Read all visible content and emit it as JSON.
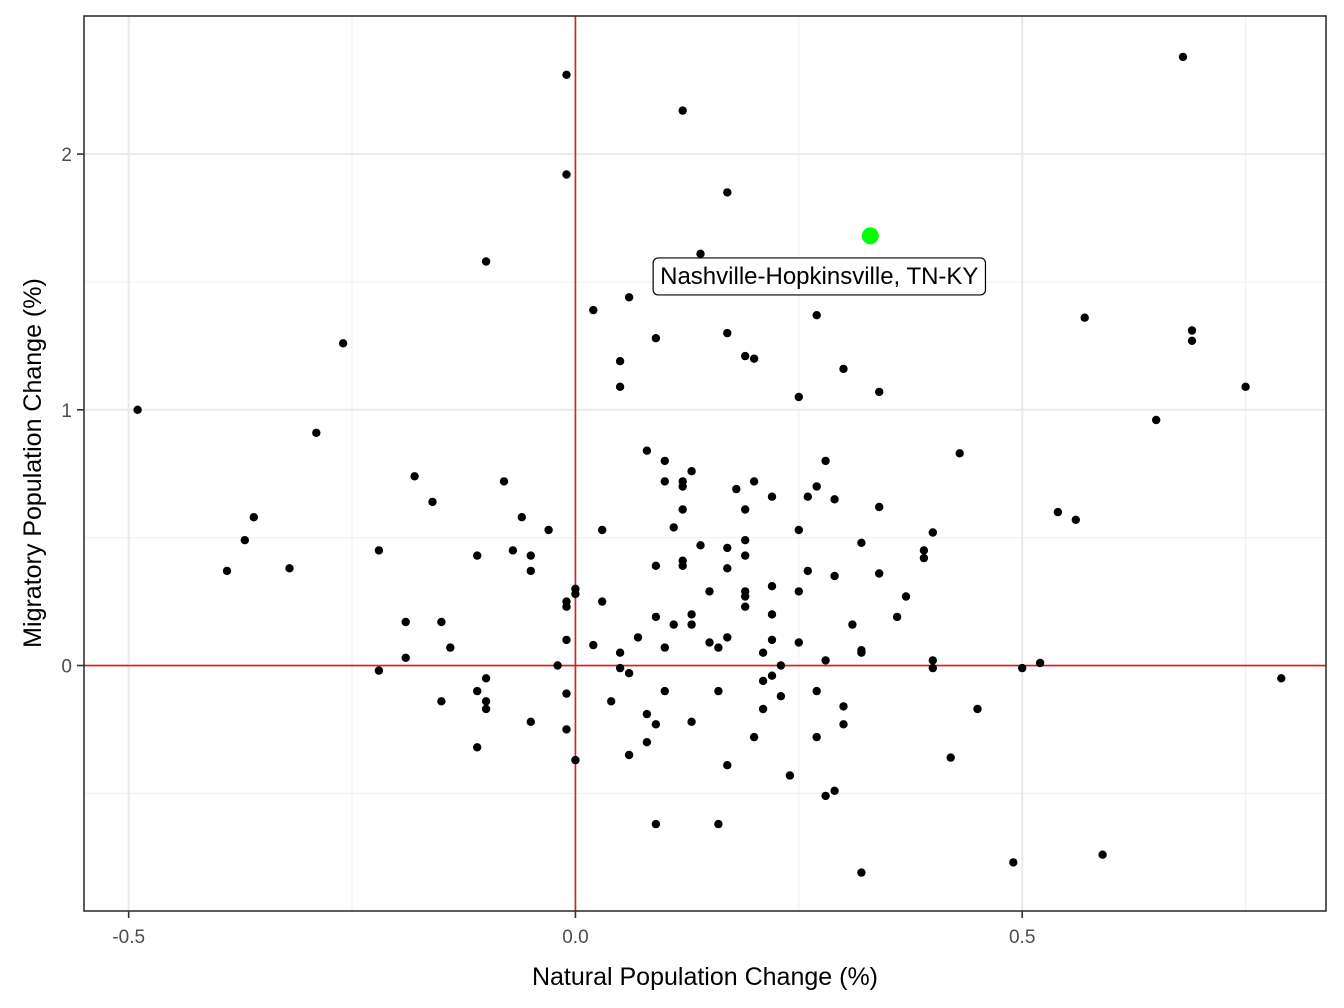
{
  "chart_data": {
    "type": "scatter",
    "xlabel": "Natural Population Change (%)",
    "ylabel": "Migratory Population Change (%)",
    "xlim": [
      -0.55,
      0.84
    ],
    "ylim": [
      -0.96,
      2.54
    ],
    "x_ticks": [
      -0.5,
      0.0,
      0.5
    ],
    "x_tick_labels": [
      "-0.5",
      "0.0",
      "0.5"
    ],
    "y_ticks": [
      0,
      1,
      2
    ],
    "y_tick_labels": [
      "0",
      "1",
      "2"
    ],
    "x_minor_ticks": [
      -0.25,
      0.25,
      0.75
    ],
    "y_minor_ticks": [
      -0.5,
      0.5,
      1.5
    ],
    "grid": true,
    "reference_lines": {
      "x": 0,
      "y": 0,
      "color": "#e41a1c"
    },
    "highlight": {
      "label": "Nashville-Hopkinsville, TN-KY",
      "x": 0.33,
      "y": 1.68,
      "color": "#00ff00"
    },
    "point_color": "#000000",
    "points": [
      [
        0.68,
        2.38
      ],
      [
        -0.01,
        2.31
      ],
      [
        0.12,
        2.17
      ],
      [
        -0.01,
        1.92
      ],
      [
        0.17,
        1.85
      ],
      [
        0.14,
        1.61
      ],
      [
        -0.1,
        1.58
      ],
      [
        0.06,
        1.44
      ],
      [
        0.02,
        1.39
      ],
      [
        0.27,
        1.37
      ],
      [
        0.57,
        1.36
      ],
      [
        0.69,
        1.31
      ],
      [
        0.69,
        1.27
      ],
      [
        -0.26,
        1.26
      ],
      [
        0.09,
        1.28
      ],
      [
        0.17,
        1.3
      ],
      [
        0.19,
        1.21
      ],
      [
        0.2,
        1.2
      ],
      [
        0.05,
        1.19
      ],
      [
        0.3,
        1.16
      ],
      [
        0.05,
        1.09
      ],
      [
        0.34,
        1.07
      ],
      [
        0.75,
        1.09
      ],
      [
        0.25,
        1.05
      ],
      [
        -0.49,
        1.0
      ],
      [
        0.65,
        0.96
      ],
      [
        -0.29,
        0.91
      ],
      [
        0.08,
        0.84
      ],
      [
        0.43,
        0.83
      ],
      [
        0.1,
        0.8
      ],
      [
        0.28,
        0.8
      ],
      [
        0.13,
        0.76
      ],
      [
        -0.18,
        0.74
      ],
      [
        0.12,
        0.72
      ],
      [
        0.1,
        0.72
      ],
      [
        0.12,
        0.7
      ],
      [
        -0.08,
        0.72
      ],
      [
        0.2,
        0.72
      ],
      [
        0.18,
        0.69
      ],
      [
        0.27,
        0.7
      ],
      [
        0.22,
        0.66
      ],
      [
        0.26,
        0.66
      ],
      [
        0.29,
        0.65
      ],
      [
        -0.16,
        0.64
      ],
      [
        0.34,
        0.62
      ],
      [
        0.12,
        0.61
      ],
      [
        0.19,
        0.61
      ],
      [
        0.54,
        0.6
      ],
      [
        -0.36,
        0.58
      ],
      [
        -0.06,
        0.58
      ],
      [
        0.56,
        0.57
      ],
      [
        0.11,
        0.54
      ],
      [
        0.03,
        0.53
      ],
      [
        -0.03,
        0.53
      ],
      [
        0.25,
        0.53
      ],
      [
        0.4,
        0.52
      ],
      [
        -0.37,
        0.49
      ],
      [
        0.19,
        0.49
      ],
      [
        0.32,
        0.48
      ],
      [
        0.14,
        0.47
      ],
      [
        0.17,
        0.46
      ],
      [
        -0.22,
        0.45
      ],
      [
        -0.07,
        0.45
      ],
      [
        0.39,
        0.45
      ],
      [
        -0.11,
        0.43
      ],
      [
        -0.05,
        0.43
      ],
      [
        0.19,
        0.43
      ],
      [
        0.39,
        0.42
      ],
      [
        0.12,
        0.41
      ],
      [
        -0.39,
        0.37
      ],
      [
        -0.32,
        0.38
      ],
      [
        0.09,
        0.39
      ],
      [
        0.12,
        0.39
      ],
      [
        0.17,
        0.38
      ],
      [
        0.26,
        0.37
      ],
      [
        -0.05,
        0.37
      ],
      [
        0.34,
        0.36
      ],
      [
        0.29,
        0.35
      ],
      [
        0.22,
        0.31
      ],
      [
        0.0,
        0.3
      ],
      [
        0.15,
        0.29
      ],
      [
        0.19,
        0.29
      ],
      [
        0.25,
        0.29
      ],
      [
        0.0,
        0.28
      ],
      [
        0.19,
        0.27
      ],
      [
        0.37,
        0.27
      ],
      [
        -0.01,
        0.25
      ],
      [
        0.03,
        0.25
      ],
      [
        -0.01,
        0.23
      ],
      [
        0.19,
        0.23
      ],
      [
        0.13,
        0.2
      ],
      [
        0.22,
        0.2
      ],
      [
        0.09,
        0.19
      ],
      [
        0.36,
        0.19
      ],
      [
        -0.19,
        0.17
      ],
      [
        -0.15,
        0.17
      ],
      [
        0.11,
        0.16
      ],
      [
        0.13,
        0.16
      ],
      [
        0.31,
        0.16
      ],
      [
        0.07,
        0.11
      ],
      [
        0.17,
        0.11
      ],
      [
        -0.01,
        0.1
      ],
      [
        0.22,
        0.1
      ],
      [
        0.15,
        0.09
      ],
      [
        0.25,
        0.09
      ],
      [
        0.02,
        0.08
      ],
      [
        -0.14,
        0.07
      ],
      [
        0.1,
        0.07
      ],
      [
        0.16,
        0.07
      ],
      [
        0.32,
        0.06
      ],
      [
        0.05,
        0.05
      ],
      [
        0.21,
        0.05
      ],
      [
        0.32,
        0.05
      ],
      [
        -0.19,
        0.03
      ],
      [
        0.28,
        0.02
      ],
      [
        0.4,
        0.02
      ],
      [
        0.52,
        0.01
      ],
      [
        -0.02,
        0.0
      ],
      [
        0.23,
        0.0
      ],
      [
        0.05,
        -0.01
      ],
      [
        0.4,
        -0.01
      ],
      [
        -0.22,
        -0.02
      ],
      [
        0.06,
        -0.03
      ],
      [
        0.22,
        -0.04
      ],
      [
        0.5,
        -0.01
      ],
      [
        -0.1,
        -0.05
      ],
      [
        0.79,
        -0.05
      ],
      [
        0.21,
        -0.06
      ],
      [
        -0.11,
        -0.1
      ],
      [
        -0.01,
        -0.11
      ],
      [
        0.1,
        -0.1
      ],
      [
        0.16,
        -0.1
      ],
      [
        0.27,
        -0.1
      ],
      [
        0.23,
        -0.12
      ],
      [
        -0.15,
        -0.14
      ],
      [
        -0.1,
        -0.14
      ],
      [
        0.04,
        -0.14
      ],
      [
        -0.1,
        -0.17
      ],
      [
        0.3,
        -0.16
      ],
      [
        0.21,
        -0.17
      ],
      [
        0.45,
        -0.17
      ],
      [
        0.08,
        -0.19
      ],
      [
        0.09,
        -0.23
      ],
      [
        -0.05,
        -0.22
      ],
      [
        0.13,
        -0.22
      ],
      [
        0.3,
        -0.23
      ],
      [
        -0.01,
        -0.25
      ],
      [
        0.2,
        -0.28
      ],
      [
        0.27,
        -0.28
      ],
      [
        0.08,
        -0.3
      ],
      [
        -0.11,
        -0.32
      ],
      [
        0.06,
        -0.35
      ],
      [
        0.42,
        -0.36
      ],
      [
        0.0,
        -0.37
      ],
      [
        0.17,
        -0.39
      ],
      [
        0.24,
        -0.43
      ],
      [
        0.29,
        -0.49
      ],
      [
        0.28,
        -0.51
      ],
      [
        0.09,
        -0.62
      ],
      [
        0.16,
        -0.62
      ],
      [
        0.59,
        -0.74
      ],
      [
        0.49,
        -0.77
      ],
      [
        0.32,
        -0.81
      ]
    ]
  }
}
